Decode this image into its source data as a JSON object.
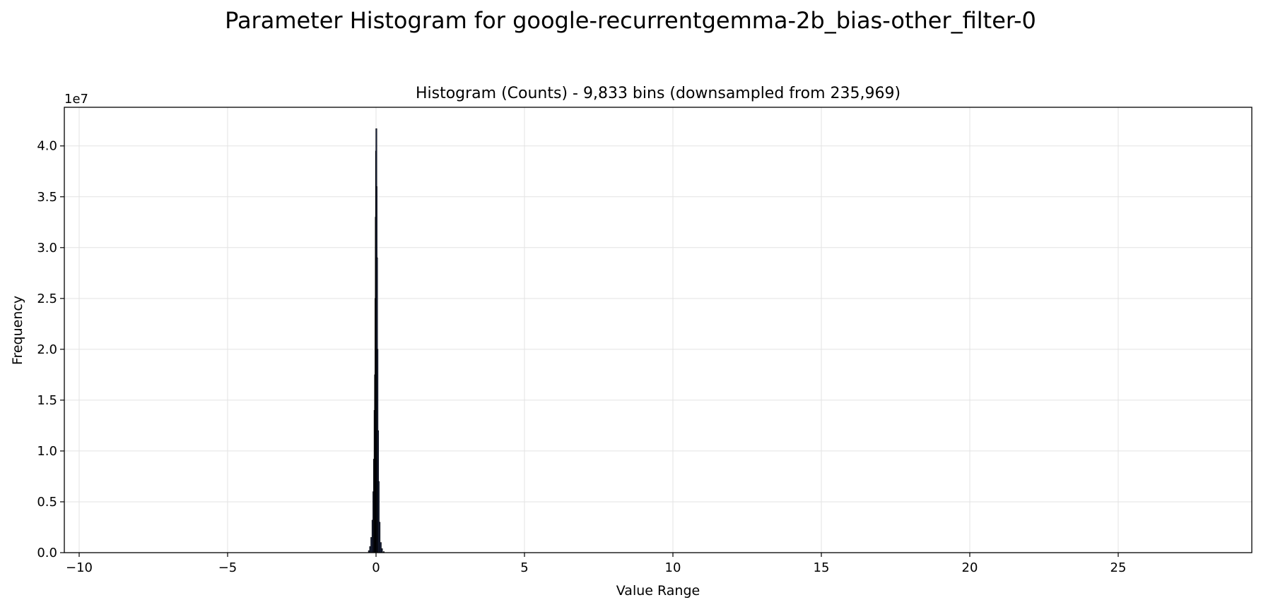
{
  "figure": {
    "suptitle": "Parameter Histogram for google-recurrentgemma-2b_bias-other_filter-0"
  },
  "chart_data": {
    "type": "bar",
    "title": "Histogram (Counts) - 9,833 bins (downsampled from 235,969)",
    "xlabel": "Value Range",
    "ylabel": "Frequency",
    "y_offset_label": "1e7",
    "xlim": [
      -10.5,
      29.5
    ],
    "ylim": [
      0,
      43800000
    ],
    "xticks": [
      -10,
      -5,
      0,
      5,
      10,
      15,
      20,
      25
    ],
    "xtick_labels": [
      "−10",
      "−5",
      "0",
      "5",
      "10",
      "15",
      "20",
      "25"
    ],
    "yticks": [
      0,
      5000000,
      10000000,
      15000000,
      20000000,
      25000000,
      30000000,
      35000000,
      40000000
    ],
    "ytick_labels": [
      "0.0",
      "0.5",
      "1.0",
      "1.5",
      "2.0",
      "2.5",
      "3.0",
      "3.5",
      "4.0"
    ],
    "grid": true,
    "bar_color": "#1f2a4a",
    "edge_color": "#000000",
    "bins": [
      {
        "x": -0.24,
        "count": 200000
      },
      {
        "x": -0.2,
        "count": 600000
      },
      {
        "x": -0.16,
        "count": 1500000
      },
      {
        "x": -0.12,
        "count": 3200000
      },
      {
        "x": -0.09,
        "count": 6000000
      },
      {
        "x": -0.07,
        "count": 9200000
      },
      {
        "x": -0.05,
        "count": 14000000
      },
      {
        "x": -0.035,
        "count": 17500000
      },
      {
        "x": -0.02,
        "count": 25000000
      },
      {
        "x": -0.01,
        "count": 33000000
      },
      {
        "x": 0.0,
        "count": 39500000
      },
      {
        "x": 0.01,
        "count": 41700000
      },
      {
        "x": 0.02,
        "count": 36000000
      },
      {
        "x": 0.035,
        "count": 29000000
      },
      {
        "x": 0.05,
        "count": 20000000
      },
      {
        "x": 0.07,
        "count": 12000000
      },
      {
        "x": 0.09,
        "count": 7000000
      },
      {
        "x": 0.12,
        "count": 3000000
      },
      {
        "x": 0.16,
        "count": 1000000
      },
      {
        "x": 0.2,
        "count": 400000
      },
      {
        "x": 0.26,
        "count": 100000
      }
    ]
  }
}
